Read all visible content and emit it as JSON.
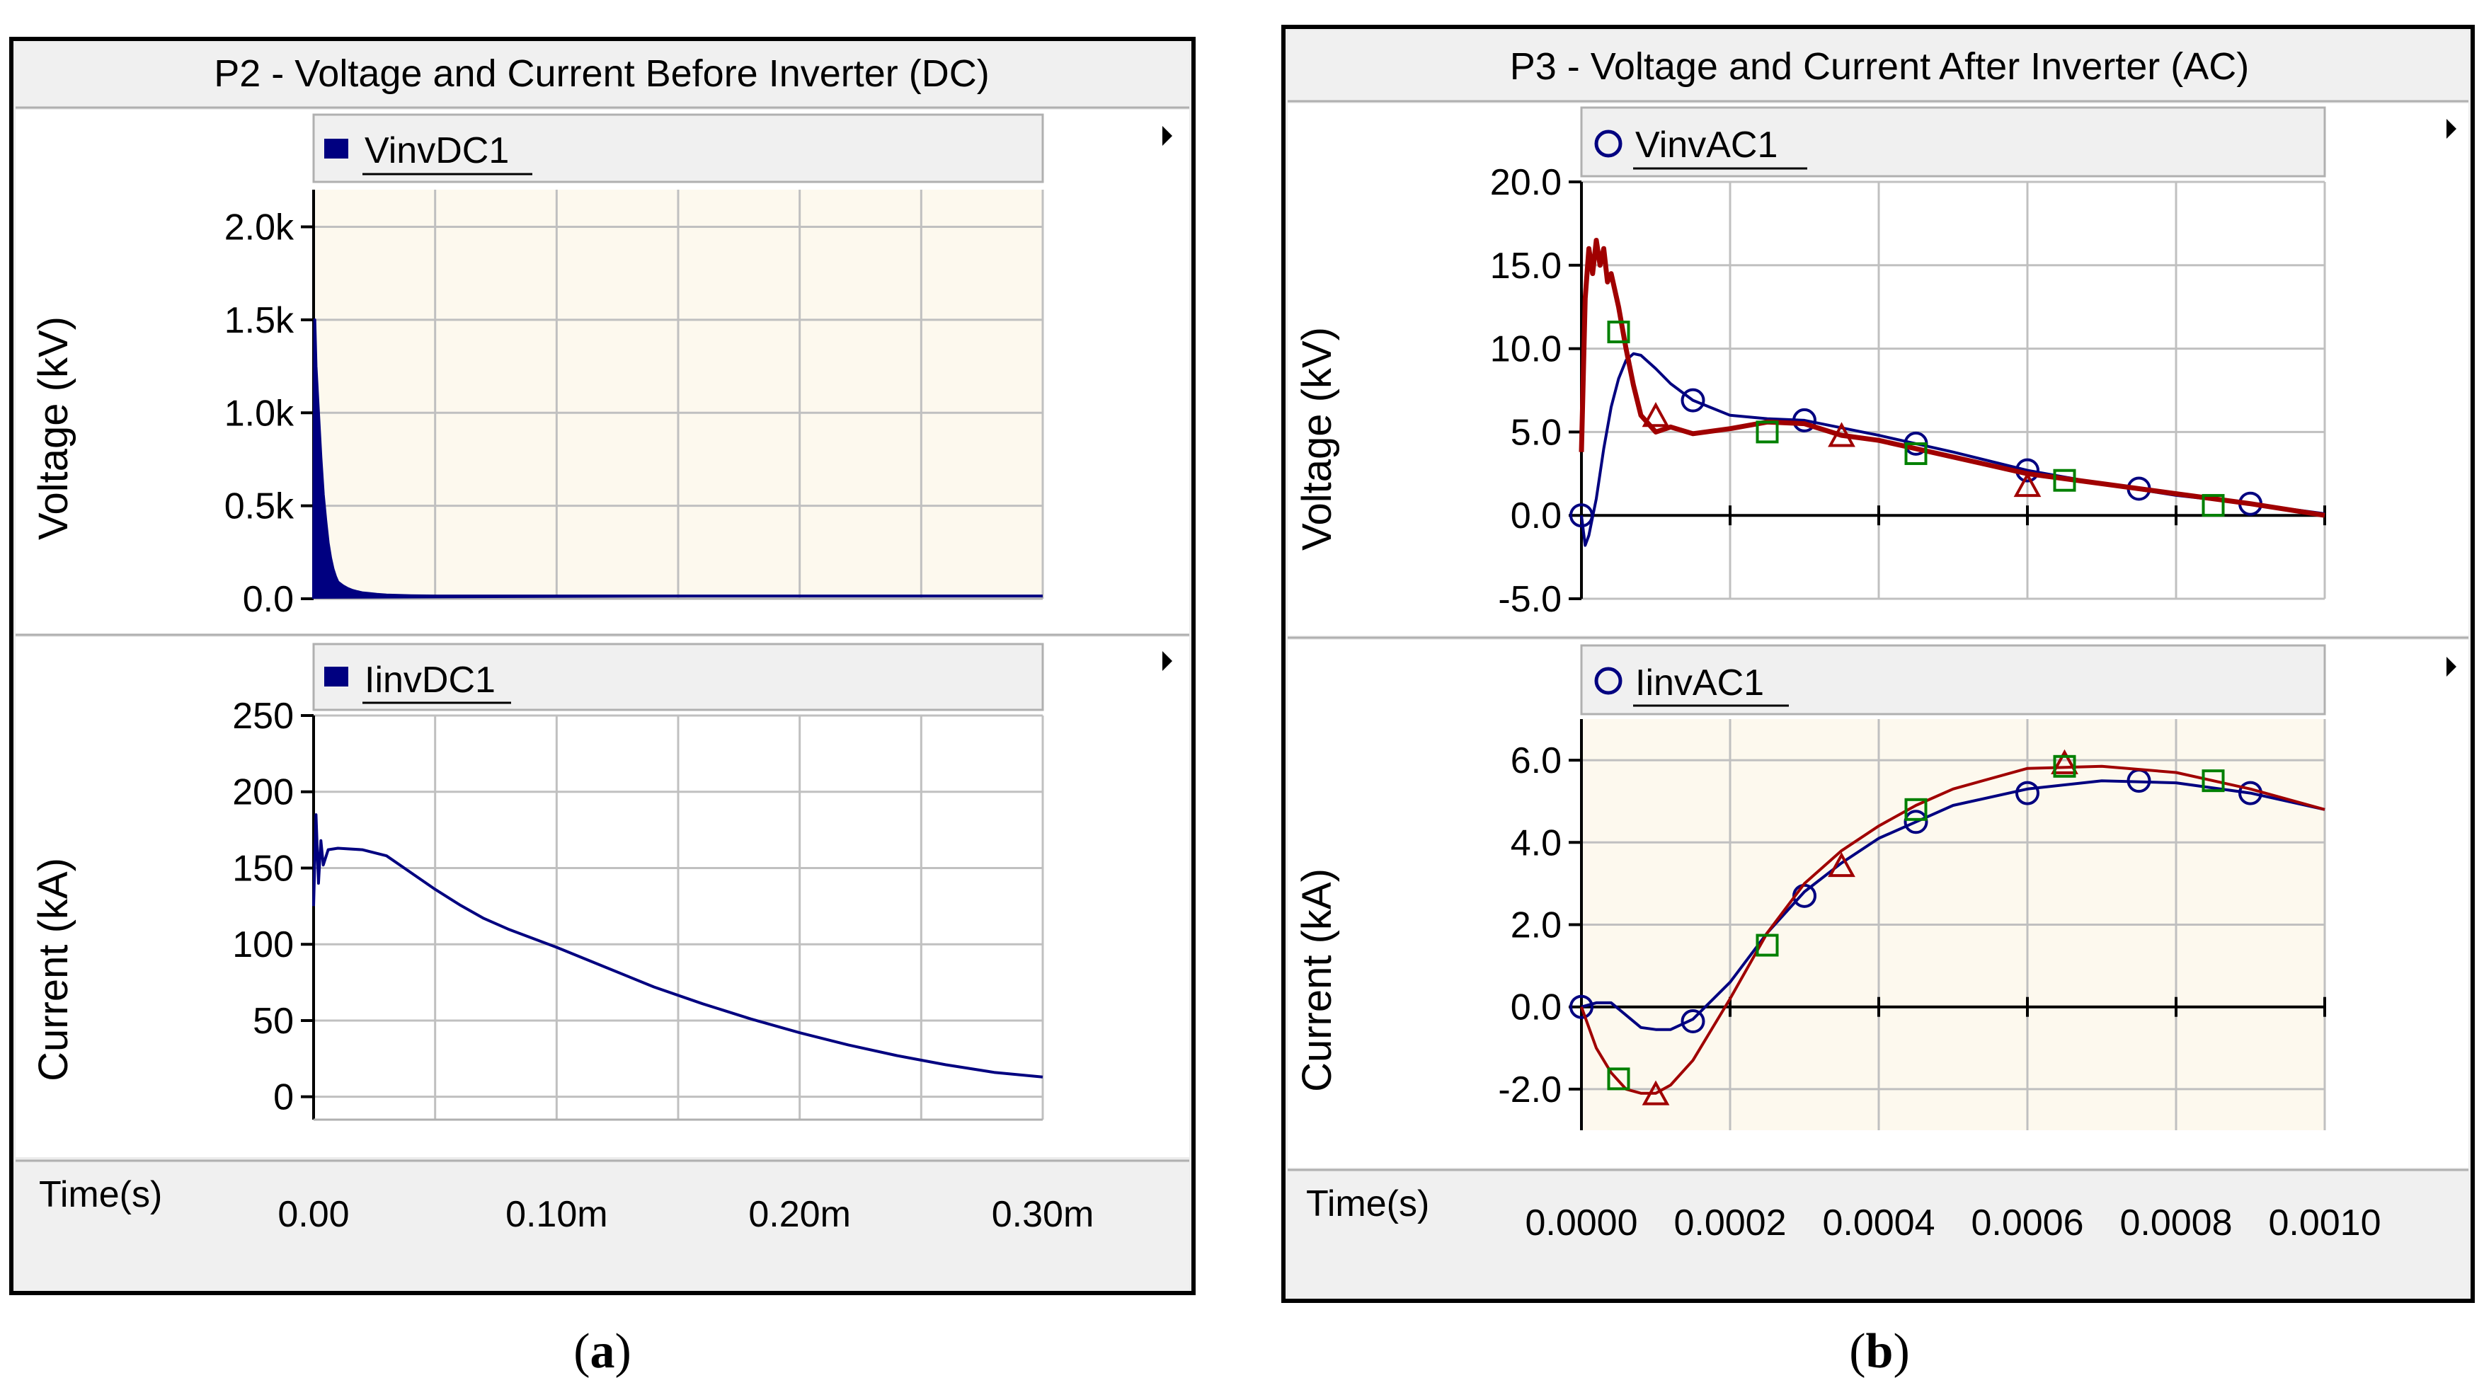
{
  "panel_a": {
    "title": "P2 - Voltage and Current Before Inverter (DC)",
    "caption_open": "(",
    "caption_letter": "a",
    "caption_close": ")",
    "time_label": "Time(s)"
  },
  "panel_b": {
    "title": "P3 - Voltage and Current After Inverter (AC)",
    "caption_open": "(",
    "caption_letter": "b",
    "caption_close": ")",
    "time_label": "Time(s)"
  },
  "colors": {
    "navy": "#000080",
    "red": "#a00000",
    "green": "#008000",
    "grid": "#c0c0c0",
    "cream": "#fdf9ee",
    "frame": "#000000"
  },
  "chart_data": [
    {
      "id": "a_volt",
      "type": "line",
      "legend": "VinvDC1",
      "legend_marker": "square",
      "ylabel": "Voltage (kV)",
      "xlim": [
        0,
        0.0003
      ],
      "ylim": [
        0,
        2200
      ],
      "yticks": [
        0,
        500,
        1000,
        1500,
        2000
      ],
      "ytick_labels": [
        "0.0",
        "0.5k",
        "1.0k",
        "1.5k",
        "2.0k"
      ],
      "xgrid": [
        0,
        5e-05,
        0.0001,
        0.00015,
        0.0002,
        0.00025,
        0.0003
      ],
      "xtick_labels": [],
      "background": "cream",
      "series": [
        {
          "name": "VinvDC1",
          "color": "navy",
          "x": [
            0,
            5e-07,
            1e-06,
            2e-06,
            3e-06,
            4e-06,
            5e-06,
            6e-06,
            7e-06,
            8e-06,
            9e-06,
            1e-05,
            1.2e-05,
            1.4e-05,
            1.6e-05,
            1.8e-05,
            2e-05,
            2.3e-05,
            2.6e-05,
            3e-05,
            3.5e-05,
            4e-05,
            5e-05,
            0.0001,
            0.0002,
            0.0003
          ],
          "y": [
            0,
            1500,
            1250,
            1000,
            760,
            560,
            420,
            300,
            220,
            160,
            120,
            90,
            70,
            55,
            45,
            38,
            32,
            28,
            24,
            20,
            18,
            16,
            15,
            15,
            15,
            15
          ]
        }
      ]
    },
    {
      "id": "a_curr",
      "type": "line",
      "legend": "IinvDC1",
      "legend_marker": "square",
      "ylabel": "Current (kA)",
      "xlim": [
        0,
        0.0003
      ],
      "ylim": [
        -15,
        250
      ],
      "yticks": [
        0,
        50,
        100,
        150,
        200,
        250
      ],
      "ytick_labels": [
        "0",
        "50",
        "100",
        "150",
        "200",
        "250"
      ],
      "xgrid": [
        0,
        5e-05,
        0.0001,
        0.00015,
        0.0002,
        0.00025,
        0.0003
      ],
      "xtick_labels": [
        "0.00",
        "0.10m",
        "0.20m",
        "0.30m"
      ],
      "xtick_label_values": [
        0,
        0.0001,
        0.0002,
        0.0003
      ],
      "background": "white",
      "series": [
        {
          "name": "IinvDC1",
          "color": "navy",
          "x": [
            0,
            1e-06,
            2e-06,
            3e-06,
            4e-06,
            6e-06,
            1e-05,
            2e-05,
            3e-05,
            4e-05,
            5e-05,
            6e-05,
            7e-05,
            8e-05,
            9e-05,
            0.0001,
            0.00012,
            0.00014,
            0.00016,
            0.00018,
            0.0002,
            0.00022,
            0.00024,
            0.00026,
            0.00028,
            0.0003
          ],
          "y": [
            125,
            185,
            140,
            168,
            152,
            162,
            163,
            162,
            158,
            147,
            136,
            126,
            117,
            110,
            104,
            98,
            85,
            72,
            61,
            51,
            42,
            34,
            27,
            21,
            16,
            13
          ]
        }
      ]
    },
    {
      "id": "b_volt",
      "type": "line",
      "legend": "VinvAC1",
      "legend_marker": "circle",
      "ylabel": "Voltage (kV)",
      "xlim": [
        0,
        0.001
      ],
      "ylim": [
        -5,
        20
      ],
      "yticks": [
        -5,
        0,
        5,
        10,
        15,
        20
      ],
      "ytick_labels": [
        "-5.0",
        "0.0",
        "5.0",
        "10.0",
        "15.0",
        "20.0"
      ],
      "xgrid": [
        0,
        0.0002,
        0.0004,
        0.0006,
        0.0008,
        0.001
      ],
      "xtick_labels": [],
      "zero_axis": true,
      "background": "white",
      "series": [
        {
          "name": "VinvAC1",
          "color": "navy",
          "marker": "circle",
          "x": [
            0,
            5e-06,
            1e-05,
            2e-05,
            3e-05,
            4e-05,
            5e-05,
            6e-05,
            7e-05,
            8e-05,
            0.0001,
            0.00012,
            0.00015,
            0.0002,
            0.00025,
            0.0003,
            0.0004,
            0.0005,
            0.0006,
            0.0007,
            0.0008,
            0.0009,
            0.001
          ],
          "y": [
            0,
            -1.8,
            -1.2,
            1.0,
            4.0,
            6.5,
            8.2,
            9.3,
            9.7,
            9.6,
            8.8,
            7.9,
            6.9,
            6.0,
            5.8,
            5.7,
            4.8,
            3.8,
            2.7,
            1.9,
            1.2,
            0.7,
            0.1
          ],
          "marker_x": [
            0,
            0.00015,
            0.0003,
            0.00045,
            0.0006,
            0.00075,
            0.0009
          ],
          "marker_y": [
            0,
            6.9,
            5.7,
            4.3,
            2.7,
            1.6,
            0.7
          ]
        },
        {
          "name": "red",
          "color": "red",
          "marker": "triangle",
          "x": [
            0,
            5e-06,
            1e-05,
            1.5e-05,
            2e-05,
            2.5e-05,
            3e-05,
            3.5e-05,
            4e-05,
            5e-05,
            6e-05,
            7e-05,
            8e-05,
            9e-05,
            0.0001,
            0.00012,
            0.00015,
            0.0002,
            0.00025,
            0.0003,
            0.00035,
            0.0004,
            0.0005,
            0.0006,
            0.0007,
            0.0008,
            0.0009,
            0.001
          ],
          "y": [
            3.8,
            13.0,
            16.0,
            14.5,
            16.5,
            15.0,
            16.0,
            14.0,
            14.5,
            12.5,
            10.0,
            7.8,
            6.0,
            5.5,
            5.0,
            5.3,
            4.9,
            5.2,
            5.6,
            5.5,
            4.8,
            4.5,
            3.5,
            2.5,
            1.9,
            1.3,
            0.7,
            0.0
          ],
          "marker_x": [
            0.0001,
            0.00035,
            0.0006
          ],
          "marker_y": [
            5.9,
            4.7,
            1.7
          ]
        },
        {
          "name": "green",
          "color": "green",
          "marker": "square",
          "x": [
            0,
            0.001
          ],
          "y": [
            0,
            0
          ],
          "no_line": true,
          "marker_x": [
            5e-05,
            0.00025,
            0.00045,
            0.00065,
            0.00085
          ],
          "marker_y": [
            11.0,
            5.0,
            3.7,
            2.1,
            0.6
          ]
        }
      ]
    },
    {
      "id": "b_curr",
      "type": "line",
      "legend": "IinvAC1",
      "legend_marker": "circle",
      "ylabel": "Current (kA)",
      "xlim": [
        0,
        0.001
      ],
      "ylim": [
        -3,
        7
      ],
      "yticks": [
        -2,
        0,
        2,
        4,
        6
      ],
      "ytick_labels": [
        "-2.0",
        "0.0",
        "2.0",
        "4.0",
        "6.0"
      ],
      "xgrid": [
        0,
        0.0002,
        0.0004,
        0.0006,
        0.0008,
        0.001
      ],
      "xtick_labels": [
        "0.0000",
        "0.0002",
        "0.0004",
        "0.0006",
        "0.0008",
        "0.0010"
      ],
      "xtick_label_values": [
        0,
        0.0002,
        0.0004,
        0.0006,
        0.0008,
        0.001
      ],
      "zero_axis": true,
      "background": "cream",
      "series": [
        {
          "name": "IinvAC1",
          "color": "navy",
          "marker": "circle",
          "x": [
            0,
            2e-05,
            4e-05,
            6e-05,
            8e-05,
            0.0001,
            0.00012,
            0.00015,
            0.0002,
            0.00025,
            0.0003,
            0.00035,
            0.0004,
            0.00045,
            0.0005,
            0.0006,
            0.0007,
            0.0008,
            0.0009,
            0.001
          ],
          "y": [
            0,
            0.1,
            0.1,
            -0.2,
            -0.5,
            -0.55,
            -0.55,
            -0.3,
            0.6,
            1.8,
            2.8,
            3.5,
            4.1,
            4.5,
            4.9,
            5.3,
            5.5,
            5.45,
            5.2,
            4.8
          ],
          "marker_x": [
            0,
            0.00015,
            0.0003,
            0.00045,
            0.0006,
            0.00075,
            0.0009
          ],
          "marker_y": [
            0,
            -0.35,
            2.7,
            4.5,
            5.2,
            5.5,
            5.2
          ]
        },
        {
          "name": "red",
          "color": "red",
          "marker": "triangle",
          "x": [
            0,
            2e-05,
            4e-05,
            6e-05,
            8e-05,
            0.0001,
            0.00012,
            0.00015,
            0.0002,
            0.00025,
            0.0003,
            0.00035,
            0.0004,
            0.00045,
            0.0005,
            0.0006,
            0.0007,
            0.0008,
            0.0009,
            0.001
          ],
          "y": [
            0,
            -1.0,
            -1.6,
            -2.0,
            -2.1,
            -2.1,
            -1.9,
            -1.3,
            0.2,
            1.8,
            3.0,
            3.8,
            4.4,
            4.9,
            5.3,
            5.8,
            5.85,
            5.7,
            5.3,
            4.8
          ],
          "marker_x": [
            0.0001,
            0.00035,
            0.00065
          ],
          "marker_y": [
            -2.15,
            3.4,
            5.9
          ]
        },
        {
          "name": "green",
          "color": "green",
          "marker": "square",
          "x": [
            0,
            0.001
          ],
          "y": [
            0,
            0
          ],
          "no_line": true,
          "marker_x": [
            5e-05,
            0.00025,
            0.00045,
            0.00065,
            0.00085
          ],
          "marker_y": [
            -1.75,
            1.5,
            4.8,
            5.85,
            5.5
          ]
        }
      ]
    }
  ]
}
